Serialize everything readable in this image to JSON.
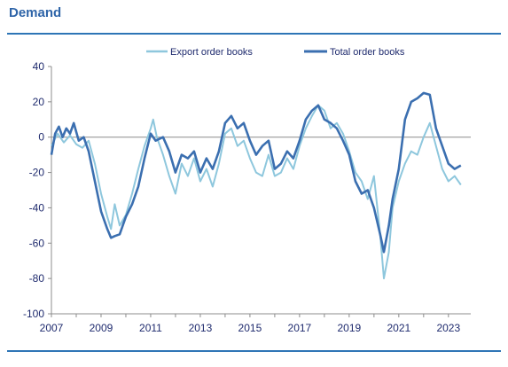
{
  "page": {
    "title": "Demand"
  },
  "colors": {
    "export": "#8ec7dd",
    "total": "#3b6fb0",
    "axis": "#8c8c8c",
    "text": "#1f2b6e",
    "rule": "#2e75b6"
  },
  "chart_data": {
    "type": "line",
    "title": "",
    "xlabel": "",
    "ylabel": "",
    "xlim": [
      2007.0,
      2023.9
    ],
    "ylim": [
      -100,
      40
    ],
    "yticks": [
      40,
      20,
      0,
      -20,
      -40,
      -60,
      -80,
      -100
    ],
    "xticks": [
      2007,
      2009,
      2011,
      2013,
      2015,
      2017,
      2019,
      2021,
      2023
    ],
    "zero_line": true,
    "legend": {
      "placement": "top-center"
    },
    "series": [
      {
        "name": "Export order books",
        "color": "#8ec7dd",
        "points": [
          [
            2007.0,
            -5
          ],
          [
            2007.25,
            2
          ],
          [
            2007.5,
            -3
          ],
          [
            2007.75,
            1
          ],
          [
            2008.0,
            -4
          ],
          [
            2008.25,
            -6
          ],
          [
            2008.5,
            -2
          ],
          [
            2008.75,
            -15
          ],
          [
            2009.0,
            -32
          ],
          [
            2009.25,
            -45
          ],
          [
            2009.4,
            -52
          ],
          [
            2009.55,
            -38
          ],
          [
            2009.75,
            -50
          ],
          [
            2010.0,
            -44
          ],
          [
            2010.25,
            -32
          ],
          [
            2010.5,
            -18
          ],
          [
            2010.75,
            -5
          ],
          [
            2011.0,
            5
          ],
          [
            2011.1,
            10
          ],
          [
            2011.25,
            0
          ],
          [
            2011.5,
            -10
          ],
          [
            2011.75,
            -22
          ],
          [
            2012.0,
            -32
          ],
          [
            2012.25,
            -15
          ],
          [
            2012.5,
            -22
          ],
          [
            2012.75,
            -12
          ],
          [
            2013.0,
            -25
          ],
          [
            2013.25,
            -18
          ],
          [
            2013.5,
            -28
          ],
          [
            2013.75,
            -15
          ],
          [
            2014.0,
            2
          ],
          [
            2014.25,
            5
          ],
          [
            2014.5,
            -5
          ],
          [
            2014.75,
            -2
          ],
          [
            2015.0,
            -12
          ],
          [
            2015.25,
            -20
          ],
          [
            2015.5,
            -22
          ],
          [
            2015.75,
            -10
          ],
          [
            2016.0,
            -22
          ],
          [
            2016.25,
            -20
          ],
          [
            2016.5,
            -12
          ],
          [
            2016.75,
            -18
          ],
          [
            2017.0,
            -5
          ],
          [
            2017.25,
            5
          ],
          [
            2017.5,
            12
          ],
          [
            2017.75,
            18
          ],
          [
            2018.0,
            15
          ],
          [
            2018.25,
            5
          ],
          [
            2018.5,
            8
          ],
          [
            2018.75,
            2
          ],
          [
            2019.0,
            -8
          ],
          [
            2019.25,
            -20
          ],
          [
            2019.5,
            -25
          ],
          [
            2019.75,
            -35
          ],
          [
            2020.0,
            -22
          ],
          [
            2020.25,
            -55
          ],
          [
            2020.4,
            -80
          ],
          [
            2020.6,
            -65
          ],
          [
            2020.75,
            -40
          ],
          [
            2021.0,
            -25
          ],
          [
            2021.25,
            -15
          ],
          [
            2021.5,
            -8
          ],
          [
            2021.75,
            -10
          ],
          [
            2022.0,
            0
          ],
          [
            2022.25,
            8
          ],
          [
            2022.5,
            -5
          ],
          [
            2022.75,
            -18
          ],
          [
            2023.0,
            -25
          ],
          [
            2023.25,
            -22
          ],
          [
            2023.5,
            -27
          ]
        ]
      },
      {
        "name": "Total order books",
        "color": "#3b6fb0",
        "points": [
          [
            2007.0,
            -10
          ],
          [
            2007.15,
            2
          ],
          [
            2007.3,
            6
          ],
          [
            2007.45,
            0
          ],
          [
            2007.6,
            5
          ],
          [
            2007.75,
            2
          ],
          [
            2007.9,
            8
          ],
          [
            2008.1,
            -2
          ],
          [
            2008.3,
            0
          ],
          [
            2008.5,
            -8
          ],
          [
            2008.75,
            -25
          ],
          [
            2009.0,
            -42
          ],
          [
            2009.25,
            -52
          ],
          [
            2009.4,
            -57
          ],
          [
            2009.55,
            -56
          ],
          [
            2009.75,
            -55
          ],
          [
            2010.0,
            -45
          ],
          [
            2010.25,
            -38
          ],
          [
            2010.5,
            -28
          ],
          [
            2010.75,
            -12
          ],
          [
            2011.0,
            2
          ],
          [
            2011.2,
            -2
          ],
          [
            2011.5,
            0
          ],
          [
            2011.75,
            -8
          ],
          [
            2012.0,
            -20
          ],
          [
            2012.25,
            -10
          ],
          [
            2012.5,
            -12
          ],
          [
            2012.75,
            -8
          ],
          [
            2013.0,
            -20
          ],
          [
            2013.25,
            -12
          ],
          [
            2013.5,
            -18
          ],
          [
            2013.75,
            -8
          ],
          [
            2014.0,
            8
          ],
          [
            2014.25,
            12
          ],
          [
            2014.5,
            5
          ],
          [
            2014.75,
            8
          ],
          [
            2015.0,
            -2
          ],
          [
            2015.25,
            -10
          ],
          [
            2015.5,
            -5
          ],
          [
            2015.75,
            -2
          ],
          [
            2016.0,
            -18
          ],
          [
            2016.25,
            -15
          ],
          [
            2016.5,
            -8
          ],
          [
            2016.75,
            -12
          ],
          [
            2017.0,
            -2
          ],
          [
            2017.25,
            10
          ],
          [
            2017.5,
            15
          ],
          [
            2017.75,
            18
          ],
          [
            2018.0,
            10
          ],
          [
            2018.25,
            8
          ],
          [
            2018.5,
            5
          ],
          [
            2018.75,
            -2
          ],
          [
            2019.0,
            -10
          ],
          [
            2019.25,
            -25
          ],
          [
            2019.5,
            -32
          ],
          [
            2019.75,
            -30
          ],
          [
            2020.0,
            -40
          ],
          [
            2020.25,
            -55
          ],
          [
            2020.4,
            -65
          ],
          [
            2020.6,
            -50
          ],
          [
            2020.75,
            -35
          ],
          [
            2021.0,
            -18
          ],
          [
            2021.25,
            10
          ],
          [
            2021.5,
            20
          ],
          [
            2021.75,
            22
          ],
          [
            2022.0,
            25
          ],
          [
            2022.25,
            24
          ],
          [
            2022.5,
            5
          ],
          [
            2022.75,
            -5
          ],
          [
            2023.0,
            -15
          ],
          [
            2023.25,
            -18
          ],
          [
            2023.5,
            -16
          ]
        ]
      }
    ]
  }
}
